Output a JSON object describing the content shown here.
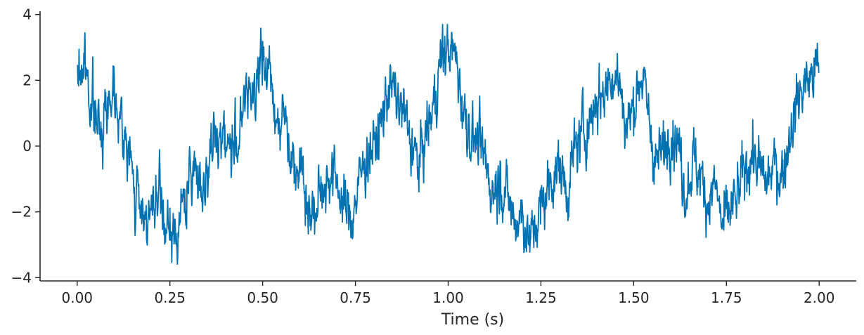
{
  "chart_data": {
    "type": "line",
    "title": "",
    "xlabel": "Time (s)",
    "ylabel": "",
    "xlim": [
      -0.1,
      2.1
    ],
    "ylim": [
      -4.1,
      4.1
    ],
    "x_ticks": [
      0.0,
      0.25,
      0.5,
      0.75,
      1.0,
      1.25,
      1.5,
      1.75,
      2.0
    ],
    "x_tick_labels": [
      "0.00",
      "0.25",
      "0.50",
      "0.75",
      "1.00",
      "1.25",
      "1.50",
      "1.75",
      "2.00"
    ],
    "y_ticks": [
      -4,
      -2,
      0,
      2,
      4
    ],
    "y_tick_labels": [
      "−4",
      "−2",
      "0",
      "2",
      "4"
    ],
    "grid": false,
    "legend": "none",
    "series": [
      {
        "color": "#0072b2",
        "x": [
          0.0,
          0.02,
          0.04,
          0.06,
          0.08,
          0.1,
          0.12,
          0.14,
          0.16,
          0.18,
          0.2,
          0.22,
          0.24,
          0.26,
          0.28,
          0.3,
          0.32,
          0.34,
          0.36,
          0.38,
          0.4,
          0.42,
          0.44,
          0.46,
          0.48,
          0.5,
          0.52,
          0.54,
          0.56,
          0.58,
          0.6,
          0.62,
          0.64,
          0.66,
          0.68,
          0.7,
          0.72,
          0.74,
          0.76,
          0.78,
          0.8,
          0.82,
          0.84,
          0.86,
          0.88,
          0.9,
          0.92,
          0.94,
          0.96,
          0.98,
          1.0,
          1.02,
          1.04,
          1.06,
          1.08,
          1.1,
          1.12,
          1.14,
          1.16,
          1.18,
          1.2,
          1.22,
          1.24,
          1.26,
          1.28,
          1.3,
          1.32,
          1.34,
          1.36,
          1.38,
          1.4,
          1.42,
          1.44,
          1.46,
          1.48,
          1.5,
          1.52,
          1.54,
          1.56,
          1.58,
          1.6,
          1.62,
          1.64,
          1.66,
          1.68,
          1.7,
          1.72,
          1.74,
          1.76,
          1.78,
          1.8,
          1.82,
          1.84,
          1.86,
          1.88,
          1.9,
          1.92,
          1.94,
          1.96,
          1.98,
          2.0
        ],
        "y": [
          2.1,
          2.5,
          1.3,
          0.4,
          1.2,
          2.0,
          0.5,
          -0.3,
          -1.6,
          -1.9,
          -2.2,
          -1.6,
          -2.5,
          -2.9,
          -2.0,
          -1.3,
          -0.6,
          -1.2,
          -0.4,
          0.5,
          0.3,
          -0.2,
          0.6,
          1.6,
          2.0,
          2.5,
          2.2,
          0.8,
          0.9,
          -0.4,
          -0.3,
          -1.8,
          -2.2,
          -1.2,
          -0.8,
          -1.0,
          -1.9,
          -2.2,
          -1.1,
          -0.3,
          0.0,
          0.6,
          2.0,
          1.4,
          1.0,
          0.1,
          -0.6,
          0.3,
          1.2,
          2.6,
          3.0,
          2.7,
          1.2,
          0.4,
          0.1,
          -0.5,
          -1.4,
          -0.9,
          -1.6,
          -2.3,
          -2.0,
          -3.0,
          -2.2,
          -1.6,
          -0.9,
          -0.6,
          -1.4,
          -0.2,
          0.4,
          0.7,
          1.5,
          1.6,
          2.3,
          2.0,
          0.6,
          1.2,
          2.3,
          0.9,
          -0.5,
          -0.2,
          0.6,
          0.1,
          -1.4,
          -0.4,
          -0.9,
          -1.7,
          -1.2,
          -2.5,
          -2.0,
          -1.6,
          -0.7,
          -0.2,
          -0.8,
          -1.1,
          -0.6,
          -0.9,
          0.4,
          1.3,
          1.9,
          2.1,
          2.4
        ]
      }
    ]
  }
}
